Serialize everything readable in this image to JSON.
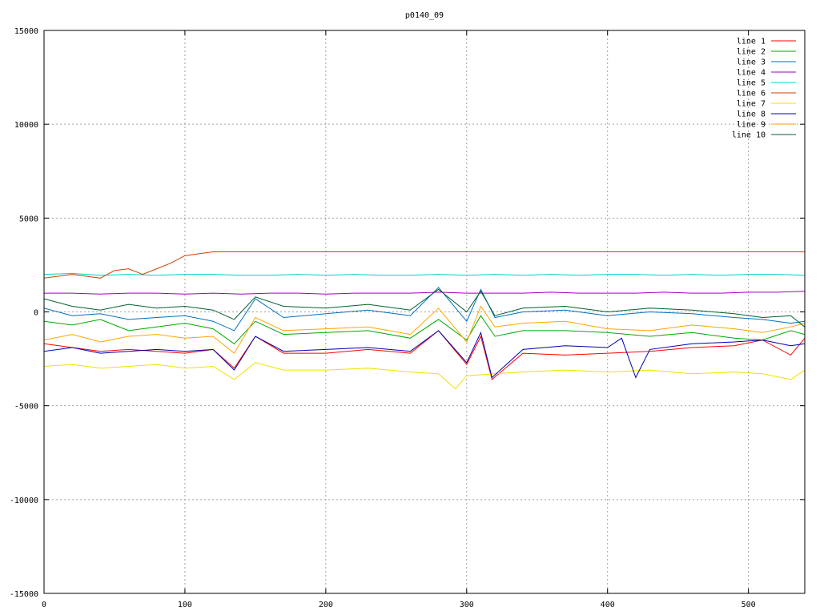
{
  "chart_data": {
    "type": "line",
    "title": "p0140_09",
    "xlabel": "",
    "ylabel": "",
    "xlim": [
      0,
      540
    ],
    "ylim": [
      -15000,
      15000
    ],
    "xticks": [
      0,
      100,
      200,
      300,
      400,
      500
    ],
    "yticks": [
      -15000,
      -10000,
      -5000,
      0,
      5000,
      10000,
      15000
    ],
    "grid": true,
    "legend_position": "top-right",
    "series": [
      {
        "name": "line 1",
        "color": "#ff0000",
        "x": [
          0,
          20,
          40,
          60,
          80,
          100,
          120,
          135,
          150,
          170,
          200,
          230,
          260,
          280,
          300,
          310,
          318,
          340,
          370,
          400,
          430,
          460,
          490,
          510,
          530,
          540
        ],
        "y": [
          -1700,
          -1900,
          -2100,
          -2000,
          -2100,
          -2200,
          -2000,
          -3000,
          -1300,
          -2200,
          -2200,
          -2000,
          -2200,
          -1000,
          -2800,
          -1300,
          -3600,
          -2200,
          -2300,
          -2200,
          -2100,
          -1900,
          -1800,
          -1500,
          -2300,
          -1400
        ]
      },
      {
        "name": "line 2",
        "color": "#00aa00",
        "x": [
          0,
          20,
          40,
          60,
          80,
          100,
          120,
          135,
          150,
          170,
          200,
          230,
          260,
          280,
          300,
          310,
          320,
          340,
          370,
          400,
          430,
          460,
          490,
          510,
          530,
          540
        ],
        "y": [
          -500,
          -700,
          -400,
          -1000,
          -800,
          -600,
          -900,
          -1700,
          -500,
          -1200,
          -1100,
          -1000,
          -1400,
          -400,
          -1500,
          -200,
          -1300,
          -1000,
          -1000,
          -1100,
          -1300,
          -1100,
          -1400,
          -1500,
          -1000,
          -1200
        ]
      },
      {
        "name": "line 3",
        "color": "#0070c0",
        "x": [
          0,
          20,
          40,
          60,
          80,
          100,
          120,
          135,
          150,
          170,
          200,
          230,
          260,
          280,
          300,
          310,
          320,
          340,
          370,
          400,
          430,
          460,
          490,
          510,
          530,
          540
        ],
        "y": [
          200,
          -200,
          -100,
          -400,
          -300,
          -200,
          -500,
          -1000,
          700,
          -300,
          -100,
          100,
          -200,
          1300,
          -500,
          1200,
          -300,
          0,
          100,
          -200,
          0,
          -100,
          -300,
          -400,
          -600,
          -500
        ]
      },
      {
        "name": "line 4",
        "color": "#a000c0",
        "x": [
          0,
          20,
          40,
          60,
          80,
          100,
          120,
          140,
          160,
          180,
          200,
          220,
          240,
          260,
          280,
          300,
          320,
          340,
          360,
          380,
          400,
          420,
          440,
          460,
          480,
          500,
          520,
          540
        ],
        "y": [
          1000,
          1000,
          950,
          1000,
          1000,
          950,
          1000,
          950,
          1000,
          1000,
          950,
          1000,
          1000,
          1000,
          1050,
          1000,
          1000,
          1000,
          1050,
          1000,
          1000,
          1000,
          1050,
          1000,
          1000,
          1050,
          1050,
          1100
        ]
      },
      {
        "name": "line 5",
        "color": "#00d0d0",
        "x": [
          0,
          20,
          40,
          60,
          80,
          100,
          120,
          140,
          160,
          180,
          200,
          220,
          240,
          260,
          280,
          300,
          320,
          340,
          360,
          380,
          400,
          420,
          440,
          460,
          480,
          500,
          520,
          540
        ],
        "y": [
          2000,
          2050,
          1950,
          2000,
          1950,
          2000,
          2000,
          1950,
          1950,
          2000,
          1950,
          2000,
          1950,
          1950,
          2000,
          1950,
          2000,
          1950,
          2000,
          1950,
          2000,
          2000,
          1950,
          2000,
          1950,
          2000,
          2000,
          1950
        ]
      },
      {
        "name": "line 6",
        "color": "#d04000",
        "x": [
          0,
          10,
          20,
          30,
          40,
          50,
          60,
          70,
          80,
          90,
          100,
          110,
          120,
          130,
          140,
          200,
          300,
          400,
          500,
          540
        ],
        "y": [
          1800,
          1900,
          2000,
          1900,
          1800,
          2200,
          2300,
          2000,
          2300,
          2600,
          3000,
          3100,
          3200,
          3200,
          3200,
          3200,
          3200,
          3200,
          3200,
          3200
        ]
      },
      {
        "name": "line 7",
        "color": "#f0e000",
        "x": [
          0,
          20,
          40,
          60,
          80,
          100,
          120,
          135,
          150,
          170,
          200,
          230,
          260,
          280,
          292,
          300,
          320,
          340,
          370,
          400,
          430,
          460,
          490,
          510,
          530,
          540
        ],
        "y": [
          -2900,
          -2800,
          -3000,
          -2900,
          -2800,
          -3000,
          -2900,
          -3600,
          -2700,
          -3100,
          -3100,
          -3000,
          -3200,
          -3300,
          -4100,
          -3400,
          -3300,
          -3200,
          -3100,
          -3200,
          -3100,
          -3300,
          -3200,
          -3300,
          -3600,
          -3100
        ]
      },
      {
        "name": "line 8",
        "color": "#0000b0",
        "x": [
          0,
          20,
          40,
          60,
          80,
          100,
          120,
          135,
          150,
          170,
          200,
          230,
          260,
          280,
          300,
          310,
          318,
          340,
          370,
          400,
          410,
          420,
          430,
          460,
          490,
          510,
          530,
          540
        ],
        "y": [
          -2100,
          -1900,
          -2200,
          -2100,
          -2000,
          -2100,
          -2000,
          -3100,
          -1300,
          -2100,
          -2000,
          -1900,
          -2100,
          -1000,
          -2700,
          -1100,
          -3500,
          -2000,
          -1800,
          -1900,
          -1400,
          -3500,
          -2000,
          -1700,
          -1600,
          -1500,
          -1800,
          -1700
        ]
      },
      {
        "name": "line 9",
        "color": "#ffa500",
        "x": [
          0,
          20,
          40,
          60,
          80,
          100,
          120,
          135,
          150,
          170,
          200,
          230,
          260,
          280,
          300,
          310,
          320,
          340,
          370,
          400,
          430,
          460,
          490,
          510,
          530,
          540
        ],
        "y": [
          -1500,
          -1200,
          -1600,
          -1300,
          -1200,
          -1400,
          -1300,
          -2200,
          -300,
          -1000,
          -900,
          -800,
          -1200,
          200,
          -1600,
          300,
          -800,
          -600,
          -500,
          -900,
          -1000,
          -700,
          -900,
          -1100,
          -800,
          -600
        ]
      },
      {
        "name": "line 10",
        "color": "#006030",
        "x": [
          0,
          20,
          40,
          60,
          80,
          100,
          120,
          135,
          150,
          170,
          200,
          230,
          260,
          280,
          300,
          310,
          320,
          340,
          370,
          400,
          430,
          460,
          490,
          510,
          530,
          540
        ],
        "y": [
          700,
          300,
          100,
          400,
          200,
          300,
          100,
          -400,
          800,
          300,
          200,
          400,
          100,
          1200,
          0,
          1100,
          -200,
          200,
          300,
          0,
          200,
          100,
          -100,
          -300,
          -200,
          -800
        ]
      }
    ]
  }
}
